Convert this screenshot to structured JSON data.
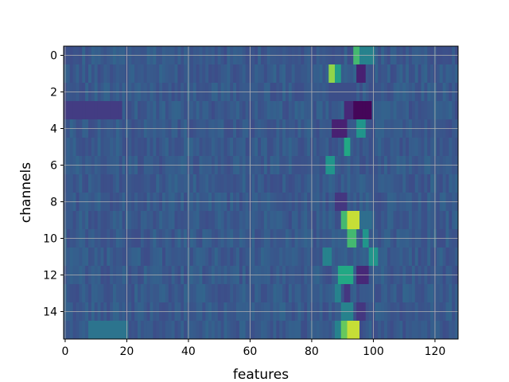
{
  "chart_data": {
    "type": "heatmap",
    "title": "",
    "xlabel": "features",
    "ylabel": "channels",
    "n_channels": 16,
    "n_features": 128,
    "xlim": [
      0,
      127
    ],
    "ylim": [
      15,
      0
    ],
    "xticks": [
      0,
      20,
      40,
      60,
      80,
      100,
      120
    ],
    "yticks": [
      0,
      2,
      4,
      6,
      8,
      10,
      12,
      14
    ],
    "grid": true,
    "colormap": "viridis",
    "baseline_value": 0.35,
    "hotspots": [
      {
        "channel": 0,
        "features": [
          94,
          95
        ],
        "value": 0.8
      },
      {
        "channel": 0,
        "features": [
          96,
          97,
          98,
          99,
          100
        ],
        "value": 0.55
      },
      {
        "channel": 1,
        "features": [
          86,
          87
        ],
        "value": 0.9
      },
      {
        "channel": 1,
        "features": [
          88,
          89
        ],
        "value": 0.7
      },
      {
        "channel": 1,
        "features": [
          95,
          96,
          97
        ],
        "value": 0.12
      },
      {
        "channel": 2,
        "features": [
          86,
          87,
          88,
          89,
          90,
          91,
          92,
          93,
          94
        ],
        "value": 0.3
      },
      {
        "channel": 3,
        "features": [
          94,
          95,
          96,
          97,
          98,
          99
        ],
        "value": 0.02
      },
      {
        "channel": 3,
        "features": [
          91,
          92,
          93
        ],
        "value": 0.15
      },
      {
        "channel": 3,
        "features": [
          0,
          1,
          2,
          3,
          4,
          5,
          6,
          7,
          8,
          9,
          10,
          11,
          12,
          13,
          14,
          15,
          16,
          17,
          18
        ],
        "value": 0.22
      },
      {
        "channel": 4,
        "features": [
          87,
          88,
          89,
          90,
          91
        ],
        "value": 0.12
      },
      {
        "channel": 4,
        "features": [
          95,
          96,
          97
        ],
        "value": 0.65
      },
      {
        "channel": 5,
        "features": [
          91,
          92
        ],
        "value": 0.75
      },
      {
        "channel": 6,
        "features": [
          85,
          86,
          87
        ],
        "value": 0.65
      },
      {
        "channel": 8,
        "features": [
          88,
          89,
          90,
          91
        ],
        "value": 0.2
      },
      {
        "channel": 9,
        "features": [
          90,
          91
        ],
        "value": 0.8
      },
      {
        "channel": 9,
        "features": [
          92,
          93,
          94,
          95
        ],
        "value": 0.95
      },
      {
        "channel": 9,
        "features": [
          96,
          97,
          98,
          99
        ],
        "value": 0.45
      },
      {
        "channel": 10,
        "features": [
          92,
          93,
          94
        ],
        "value": 0.8
      },
      {
        "channel": 10,
        "features": [
          97,
          98
        ],
        "value": 0.65
      },
      {
        "channel": 11,
        "features": [
          99,
          100,
          101
        ],
        "value": 0.65
      },
      {
        "channel": 11,
        "features": [
          84,
          85,
          86
        ],
        "value": 0.55
      },
      {
        "channel": 12,
        "features": [
          89,
          90,
          91,
          92,
          93
        ],
        "value": 0.75
      },
      {
        "channel": 12,
        "features": [
          95,
          96,
          97,
          98
        ],
        "value": 0.15
      },
      {
        "channel": 13,
        "features": [
          88,
          89
        ],
        "value": 0.55
      },
      {
        "channel": 13,
        "features": [
          91,
          92
        ],
        "value": 0.2
      },
      {
        "channel": 14,
        "features": [
          90,
          91,
          92,
          93
        ],
        "value": 0.55
      },
      {
        "channel": 14,
        "features": [
          95,
          96,
          97
        ],
        "value": 0.2
      },
      {
        "channel": 15,
        "features": [
          90,
          91
        ],
        "value": 0.85
      },
      {
        "channel": 15,
        "features": [
          92,
          93,
          94,
          95
        ],
        "value": 0.95
      },
      {
        "channel": 15,
        "features": [
          88,
          89
        ],
        "value": 0.55
      },
      {
        "channel": 15,
        "features": [
          8,
          9,
          10,
          11,
          12,
          13,
          14,
          15,
          16,
          17,
          18,
          19,
          20
        ],
        "value": 0.48
      }
    ]
  }
}
